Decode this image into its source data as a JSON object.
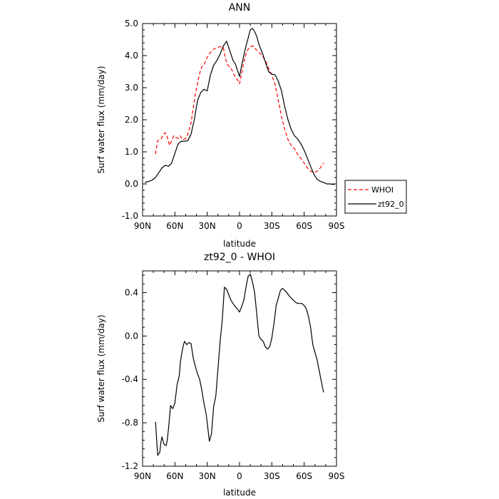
{
  "chart_data": [
    {
      "type": "line",
      "title": "ANN",
      "xlabel": "latitude",
      "ylabel": "Surf water flux (mm/day)",
      "x_ticks": [
        90,
        60,
        30,
        0,
        -30,
        -60,
        -90
      ],
      "x_tick_labels": [
        "90N",
        "60N",
        "30N",
        "0",
        "30S",
        "60S",
        "90S"
      ],
      "xlim": [
        90,
        -90
      ],
      "ylim": [
        -1.0,
        5.0
      ],
      "y_ticks": [
        -1.0,
        0.0,
        1.0,
        2.0,
        3.0,
        4.0,
        5.0
      ],
      "y_tick_labels": [
        "-1.0",
        "0.0",
        "1.0",
        "2.0",
        "3.0",
        "4.0",
        "5.0"
      ],
      "grid": false,
      "legend_position": "outside-right",
      "series": [
        {
          "name": "WHOI",
          "color": "#ff0000",
          "style": "dashed",
          "x": [
            78,
            76,
            73,
            71,
            69,
            67,
            65,
            63,
            61,
            59,
            57,
            55,
            53,
            51,
            49,
            45,
            41,
            37,
            35,
            33,
            30,
            27,
            24,
            21,
            18,
            15,
            13,
            11,
            9,
            7,
            5,
            2,
            0,
            -2,
            -4,
            -6,
            -8,
            -10,
            -13,
            -15,
            -18,
            -21,
            -24,
            -27,
            -30,
            -33,
            -36,
            -39,
            -42,
            -45,
            -48,
            -51,
            -54,
            -57,
            -60,
            -63,
            -66,
            -69,
            -72,
            -75,
            -78
          ],
          "y": [
            0.93,
            1.35,
            1.4,
            1.5,
            1.6,
            1.45,
            1.2,
            1.35,
            1.5,
            1.45,
            1.42,
            1.5,
            1.38,
            1.4,
            1.45,
            1.9,
            2.8,
            3.45,
            3.65,
            3.7,
            3.95,
            4.1,
            4.2,
            4.25,
            4.28,
            4.25,
            3.9,
            3.7,
            3.65,
            3.55,
            3.4,
            3.25,
            3.12,
            3.45,
            3.8,
            4.05,
            4.2,
            4.28,
            4.3,
            4.2,
            4.1,
            4.0,
            3.85,
            3.6,
            3.4,
            3.1,
            2.6,
            2.1,
            1.7,
            1.38,
            1.2,
            1.1,
            0.92,
            0.8,
            0.65,
            0.5,
            0.4,
            0.35,
            0.4,
            0.5,
            0.65
          ]
        },
        {
          "name": "zt92_0",
          "color": "#000000",
          "style": "solid",
          "x": [
            88,
            84,
            81,
            78,
            75,
            72,
            69,
            66,
            63,
            60,
            57,
            54,
            51,
            48,
            45,
            42,
            39,
            36,
            33,
            30,
            27,
            24,
            21,
            18,
            15,
            12,
            10,
            8,
            6,
            4,
            2,
            0,
            -2,
            -4,
            -6,
            -8,
            -10,
            -12,
            -14,
            -16,
            -18,
            -21,
            -24,
            -27,
            -30,
            -33,
            -36,
            -39,
            -42,
            -45,
            -48,
            -51,
            -54,
            -57,
            -60,
            -63,
            -66,
            -69,
            -72,
            -75,
            -78,
            -81,
            -84,
            -88
          ],
          "y": [
            0.05,
            0.08,
            0.12,
            0.2,
            0.35,
            0.5,
            0.58,
            0.55,
            0.65,
            0.95,
            1.25,
            1.33,
            1.33,
            1.35,
            1.55,
            2.0,
            2.6,
            2.85,
            2.95,
            2.9,
            3.4,
            3.7,
            3.85,
            4.05,
            4.3,
            4.45,
            4.25,
            4.05,
            3.85,
            3.75,
            3.55,
            3.35,
            3.7,
            4.0,
            4.3,
            4.55,
            4.8,
            4.85,
            4.75,
            4.6,
            4.35,
            4.1,
            3.8,
            3.5,
            3.42,
            3.4,
            3.2,
            2.9,
            2.4,
            2.0,
            1.7,
            1.5,
            1.4,
            1.25,
            1.05,
            0.8,
            0.55,
            0.3,
            0.15,
            0.08,
            0.05,
            0.0,
            0.0,
            -0.02
          ]
        }
      ]
    },
    {
      "type": "line",
      "title": "zt92_0 - WHOI",
      "xlabel": "latitude",
      "ylabel": "Surf water flux (mm/day)",
      "x_ticks": [
        90,
        60,
        30,
        0,
        -30,
        -60,
        -90
      ],
      "x_tick_labels": [
        "90N",
        "60N",
        "30N",
        "0",
        "30S",
        "60S",
        "90S"
      ],
      "xlim": [
        90,
        -90
      ],
      "ylim": [
        -1.2,
        0.6
      ],
      "y_ticks": [
        -1.2,
        -0.8,
        -0.4,
        0.0,
        0.4
      ],
      "y_tick_labels": [
        "-1.2",
        "-0.8",
        "-0.4",
        "0.0",
        "0.4"
      ],
      "grid": false,
      "series": [
        {
          "name": "",
          "color": "#000000",
          "style": "solid",
          "x": [
            78,
            76,
            74,
            73,
            72,
            70,
            68,
            67,
            66,
            64,
            62,
            60,
            58,
            56,
            55,
            54,
            53,
            52,
            51,
            49,
            47,
            45,
            43,
            41,
            39,
            37,
            35,
            33,
            31,
            30,
            28,
            26,
            24,
            22,
            20,
            18,
            16,
            14,
            12,
            10,
            8,
            6,
            4,
            2,
            0,
            -2,
            -4,
            -6,
            -8,
            -10,
            -12,
            -14,
            -16,
            -18,
            -20,
            -22,
            -24,
            -26,
            -28,
            -30,
            -32,
            -34,
            -36,
            -38,
            -40,
            -42,
            -44,
            -46,
            -48,
            -50,
            -52,
            -54,
            -56,
            -58,
            -60,
            -62,
            -64,
            -66,
            -68,
            -70,
            -72,
            -74,
            -76,
            -78
          ],
          "y": [
            -0.79,
            -1.1,
            -1.07,
            -0.98,
            -0.93,
            -1.0,
            -1.01,
            -0.95,
            -0.86,
            -0.64,
            -0.67,
            -0.62,
            -0.45,
            -0.37,
            -0.25,
            -0.18,
            -0.13,
            -0.08,
            -0.05,
            -0.08,
            -0.06,
            -0.07,
            -0.2,
            -0.28,
            -0.35,
            -0.4,
            -0.5,
            -0.62,
            -0.72,
            -0.8,
            -0.97,
            -0.9,
            -0.65,
            -0.55,
            -0.3,
            -0.05,
            0.15,
            0.45,
            0.43,
            0.38,
            0.33,
            0.3,
            0.27,
            0.25,
            0.22,
            0.27,
            0.33,
            0.45,
            0.55,
            0.57,
            0.5,
            0.4,
            0.2,
            0.0,
            -0.03,
            -0.05,
            -0.1,
            -0.12,
            -0.1,
            -0.02,
            0.12,
            0.28,
            0.35,
            0.42,
            0.44,
            0.42,
            0.4,
            0.37,
            0.35,
            0.33,
            0.31,
            0.3,
            0.3,
            0.3,
            0.28,
            0.25,
            0.18,
            0.08,
            -0.08,
            -0.15,
            -0.22,
            -0.32,
            -0.42,
            -0.52
          ]
        }
      ]
    }
  ]
}
